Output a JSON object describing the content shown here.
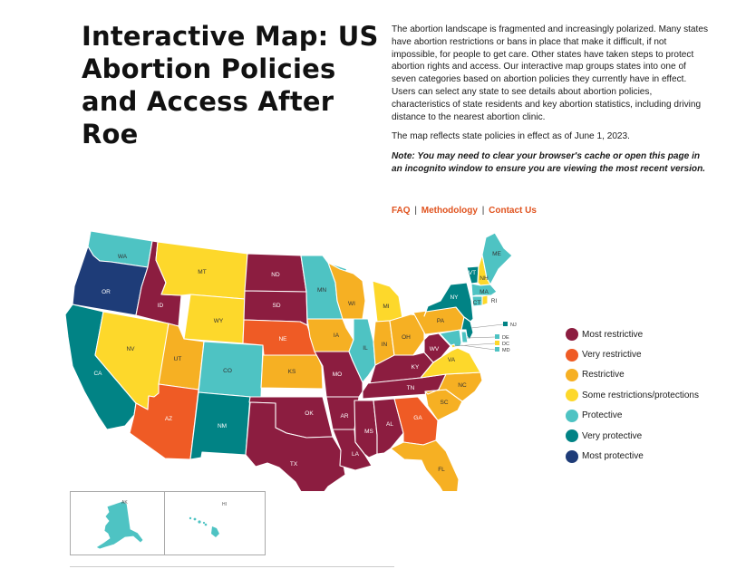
{
  "header": {
    "title": "Interactive Map: US Abortion Policies and Access After Roe",
    "intro": "The abortion landscape is fragmented and increasingly polarized. Many states have abortion restrictions or bans in place that make it difficult, if not impossible, for people to get care. Other states have taken steps to protect abortion rights and access. Our interactive map groups states into one of seven categories based on abortion policies they currently have in effect. Users can select any state to see details about abortion policies, characteristics of state residents and key abortion statistics, including driving distance to the nearest abortion clinic.",
    "as_of": "The map reflects state policies in effect as of June 1, 2023.",
    "note": "Note: You may need to clear your browser's cache or open this page in an incognito window to ensure you are viewing the most recent version."
  },
  "links": {
    "faq": "FAQ",
    "methodology": "Methodology",
    "contact": "Contact Us",
    "separator": "|"
  },
  "categories": [
    {
      "key": "most_restrictive",
      "label": "Most restrictive",
      "color": "#8c1d40"
    },
    {
      "key": "very_restrictive",
      "label": "Very restrictive",
      "color": "#ef5b25"
    },
    {
      "key": "restrictive",
      "label": "Restrictive",
      "color": "#f6b023"
    },
    {
      "key": "some",
      "label": "Some restrictions/protections",
      "color": "#fdd82b"
    },
    {
      "key": "protective",
      "label": "Protective",
      "color": "#4ec3c3"
    },
    {
      "key": "very_protective",
      "label": "Very protective",
      "color": "#018385"
    },
    {
      "key": "most_protective",
      "label": "Most protective",
      "color": "#1e3c78"
    }
  ],
  "states": {
    "WA": "protective",
    "OR": "most_protective",
    "CA": "very_protective",
    "ID": "most_restrictive",
    "NV": "some",
    "MT": "some",
    "WY": "some",
    "UT": "restrictive",
    "AZ": "very_restrictive",
    "CO": "protective",
    "NM": "very_protective",
    "ND": "most_restrictive",
    "SD": "most_restrictive",
    "NE": "very_restrictive",
    "KS": "restrictive",
    "OK": "most_restrictive",
    "TX": "most_restrictive",
    "MN": "protective",
    "IA": "restrictive",
    "MO": "most_restrictive",
    "AR": "most_restrictive",
    "LA": "most_restrictive",
    "WI": "restrictive",
    "IL": "protective",
    "MI": "some",
    "IN": "restrictive",
    "OH": "restrictive",
    "KY": "most_restrictive",
    "TN": "most_restrictive",
    "MS": "most_restrictive",
    "AL": "most_restrictive",
    "GA": "very_restrictive",
    "FL": "restrictive",
    "SC": "restrictive",
    "NC": "restrictive",
    "VA": "some",
    "WV": "most_restrictive",
    "PA": "restrictive",
    "NY": "very_protective",
    "VT": "very_protective",
    "NH": "some",
    "ME": "protective",
    "MA": "protective",
    "CT": "protective",
    "RI": "some",
    "NJ": "very_protective",
    "DE": "protective",
    "MD": "protective",
    "DC": "some",
    "AK": "protective",
    "HI": "protective"
  },
  "callouts": [
    "NJ",
    "DE",
    "DC",
    "MD"
  ],
  "inset": {
    "alaska": "AK",
    "hawaii": "HI"
  }
}
